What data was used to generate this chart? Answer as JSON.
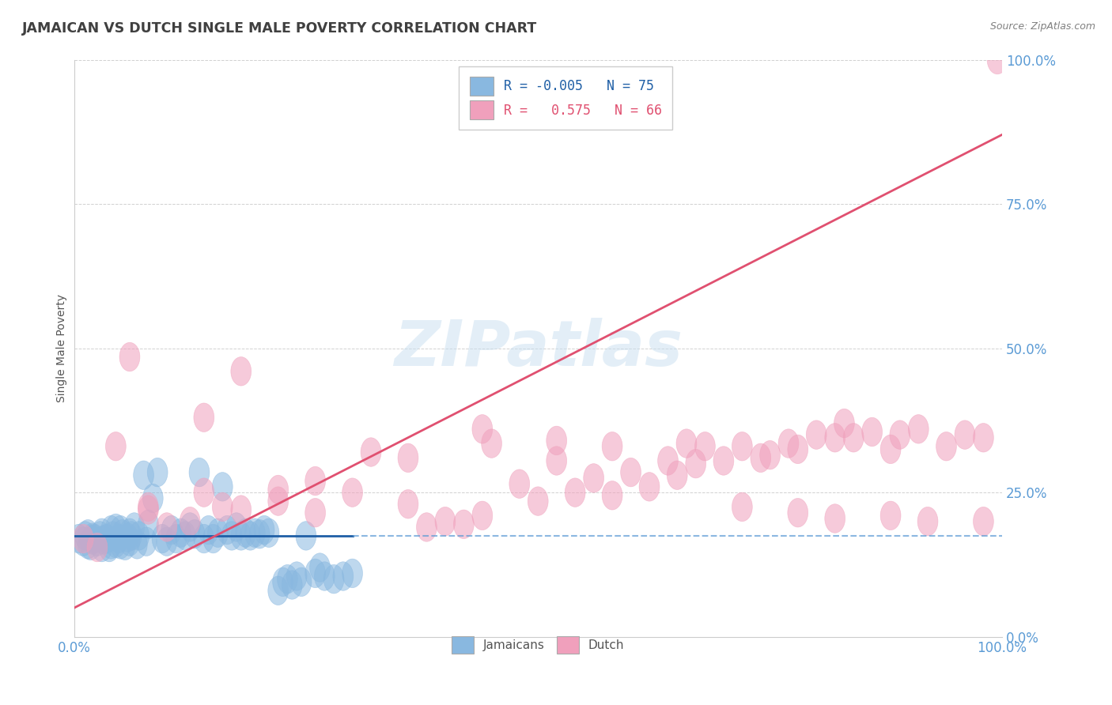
{
  "title": "JAMAICAN VS DUTCH SINGLE MALE POVERTY CORRELATION CHART",
  "source": "Source: ZipAtlas.com",
  "ylabel": "Single Male Poverty",
  "watermark": "ZIPatlas",
  "jamaican_color": "#89b8e0",
  "dutch_color": "#f0a0bc",
  "jamaican_line_color": "#1f5fa6",
  "dutch_line_color": "#e05070",
  "jamaican_R": -0.005,
  "jamaican_N": 75,
  "dutch_R": 0.575,
  "dutch_N": 66,
  "background_color": "#ffffff",
  "grid_color": "#cccccc",
  "axis_label_color": "#5b9bd5",
  "title_color": "#404040",
  "source_color": "#808080",
  "jamaican_x": [
    0.5,
    1.0,
    1.2,
    1.5,
    1.5,
    1.8,
    2.0,
    2.0,
    2.2,
    2.5,
    2.8,
    3.0,
    3.0,
    3.2,
    3.5,
    3.8,
    4.0,
    4.0,
    4.2,
    4.5,
    4.5,
    4.8,
    5.0,
    5.0,
    5.2,
    5.5,
    5.8,
    6.0,
    6.0,
    6.2,
    6.5,
    6.8,
    7.0,
    7.5,
    7.8,
    8.0,
    8.5,
    9.0,
    9.5,
    10.0,
    10.5,
    11.0,
    11.5,
    12.0,
    12.5,
    13.0,
    13.5,
    14.0,
    14.5,
    15.0,
    15.5,
    16.0,
    16.5,
    17.0,
    17.5,
    18.0,
    18.5,
    19.0,
    19.5,
    20.0,
    20.5,
    21.0,
    22.0,
    22.5,
    23.0,
    23.5,
    24.0,
    24.5,
    25.0,
    26.0,
    26.5,
    27.0,
    28.0,
    29.0,
    30.0
  ],
  "jamaican_y": [
    17.0,
    16.5,
    17.5,
    16.0,
    17.8,
    15.8,
    17.2,
    16.8,
    17.0,
    16.5,
    17.5,
    15.5,
    18.0,
    16.8,
    17.0,
    15.5,
    18.5,
    16.0,
    17.5,
    16.2,
    18.8,
    17.0,
    16.0,
    18.5,
    17.8,
    15.8,
    17.2,
    16.5,
    18.0,
    17.5,
    19.0,
    16.0,
    17.5,
    28.0,
    16.5,
    19.5,
    24.0,
    28.5,
    17.0,
    16.5,
    18.5,
    17.0,
    18.0,
    17.5,
    19.0,
    17.8,
    28.5,
    17.0,
    18.5,
    17.0,
    18.0,
    26.0,
    18.5,
    17.5,
    19.0,
    17.5,
    18.0,
    17.5,
    18.0,
    17.8,
    18.5,
    18.0,
    8.0,
    9.5,
    10.0,
    9.0,
    10.5,
    9.5,
    17.5,
    11.0,
    12.0,
    10.5,
    10.0,
    10.5,
    11.0
  ],
  "dutch_x": [
    1.0,
    2.5,
    4.5,
    6.0,
    8.0,
    10.0,
    12.5,
    14.0,
    16.0,
    18.0,
    22.0,
    26.0,
    30.0,
    32.0,
    36.0,
    38.0,
    40.0,
    42.0,
    44.0,
    45.0,
    48.0,
    50.0,
    52.0,
    54.0,
    56.0,
    58.0,
    60.0,
    62.0,
    64.0,
    65.0,
    67.0,
    68.0,
    70.0,
    72.0,
    74.0,
    75.0,
    77.0,
    78.0,
    80.0,
    82.0,
    83.0,
    84.0,
    86.0,
    88.0,
    89.0,
    91.0,
    94.0,
    96.0,
    98.0,
    99.5,
    8.0,
    14.0,
    18.0,
    22.0,
    26.0,
    36.0,
    44.0,
    52.0,
    58.0,
    66.0,
    72.0,
    78.0,
    82.0,
    88.0,
    92.0,
    98.0
  ],
  "dutch_y": [
    17.0,
    15.5,
    33.0,
    48.5,
    22.0,
    19.0,
    20.0,
    38.0,
    22.5,
    46.0,
    23.5,
    21.5,
    25.0,
    32.0,
    23.0,
    19.0,
    20.0,
    19.5,
    21.0,
    33.5,
    26.5,
    23.5,
    30.5,
    25.0,
    27.5,
    24.5,
    28.5,
    26.0,
    30.5,
    28.0,
    30.0,
    33.0,
    30.5,
    33.0,
    31.0,
    31.5,
    33.5,
    32.5,
    35.0,
    34.5,
    37.0,
    34.5,
    35.5,
    32.5,
    35.0,
    36.0,
    33.0,
    35.0,
    34.5,
    100.0,
    22.5,
    25.0,
    22.0,
    25.5,
    27.0,
    31.0,
    36.0,
    34.0,
    33.0,
    33.5,
    22.5,
    21.5,
    20.5,
    21.0,
    20.0,
    20.0
  ],
  "xlim": [
    0,
    100
  ],
  "ylim": [
    0,
    100
  ],
  "ytick_values": [
    0,
    25,
    50,
    75,
    100
  ],
  "ytick_labels": [
    "0.0%",
    "25.0%",
    "50.0%",
    "75.0%",
    "100.0%"
  ],
  "xtick_values": [
    0,
    100
  ],
  "xtick_labels": [
    "0.0%",
    "100.0%"
  ],
  "jamaican_line_x_solid_end": 30,
  "jamaican_line_y": 17.5,
  "dutch_line_x0": 0,
  "dutch_line_y0": 5,
  "dutch_line_x1": 100,
  "dutch_line_y1": 87
}
